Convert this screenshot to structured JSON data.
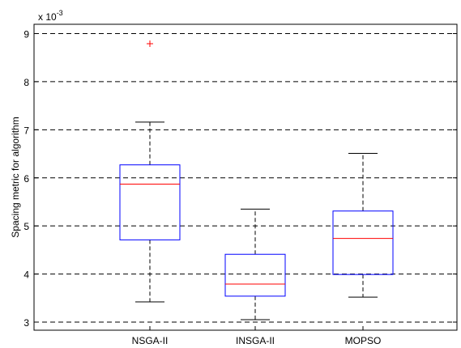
{
  "chart_data": {
    "type": "boxplot",
    "exponent_prefix": "x 10",
    "exponent_power": "-3",
    "ylabel": "Spacing metric for algorithm",
    "xlabel": "",
    "ylim": [
      2.85,
      9.1
    ],
    "y_ticks": [
      "3",
      "4",
      "5",
      "6",
      "7",
      "8",
      "9"
    ],
    "y_tick_values": [
      3,
      4,
      5,
      6,
      7,
      8,
      9
    ],
    "grid": "horizontal dashed",
    "categories": [
      "NSGA-II",
      "INSGA-II",
      "MOPSO"
    ],
    "boxes": [
      {
        "category": "NSGA-II",
        "whisker_low": 3.42,
        "q1": 4.71,
        "median": 5.87,
        "q3": 6.27,
        "whisker_high": 7.16,
        "outliers": [
          8.79
        ]
      },
      {
        "category": "INSGA-II",
        "whisker_low": 3.05,
        "q1": 3.54,
        "median": 3.79,
        "q3": 4.41,
        "whisker_high": 5.35,
        "outliers": []
      },
      {
        "category": "MOPSO",
        "whisker_low": 3.52,
        "q1": 3.99,
        "median": 4.74,
        "q3": 5.31,
        "whisker_high": 6.51,
        "outliers": []
      }
    ],
    "colors": {
      "box": "#0000ff",
      "median": "#ff0000",
      "whisker": "#000000",
      "outlier": "#ff0000",
      "grid": "#000000"
    }
  }
}
